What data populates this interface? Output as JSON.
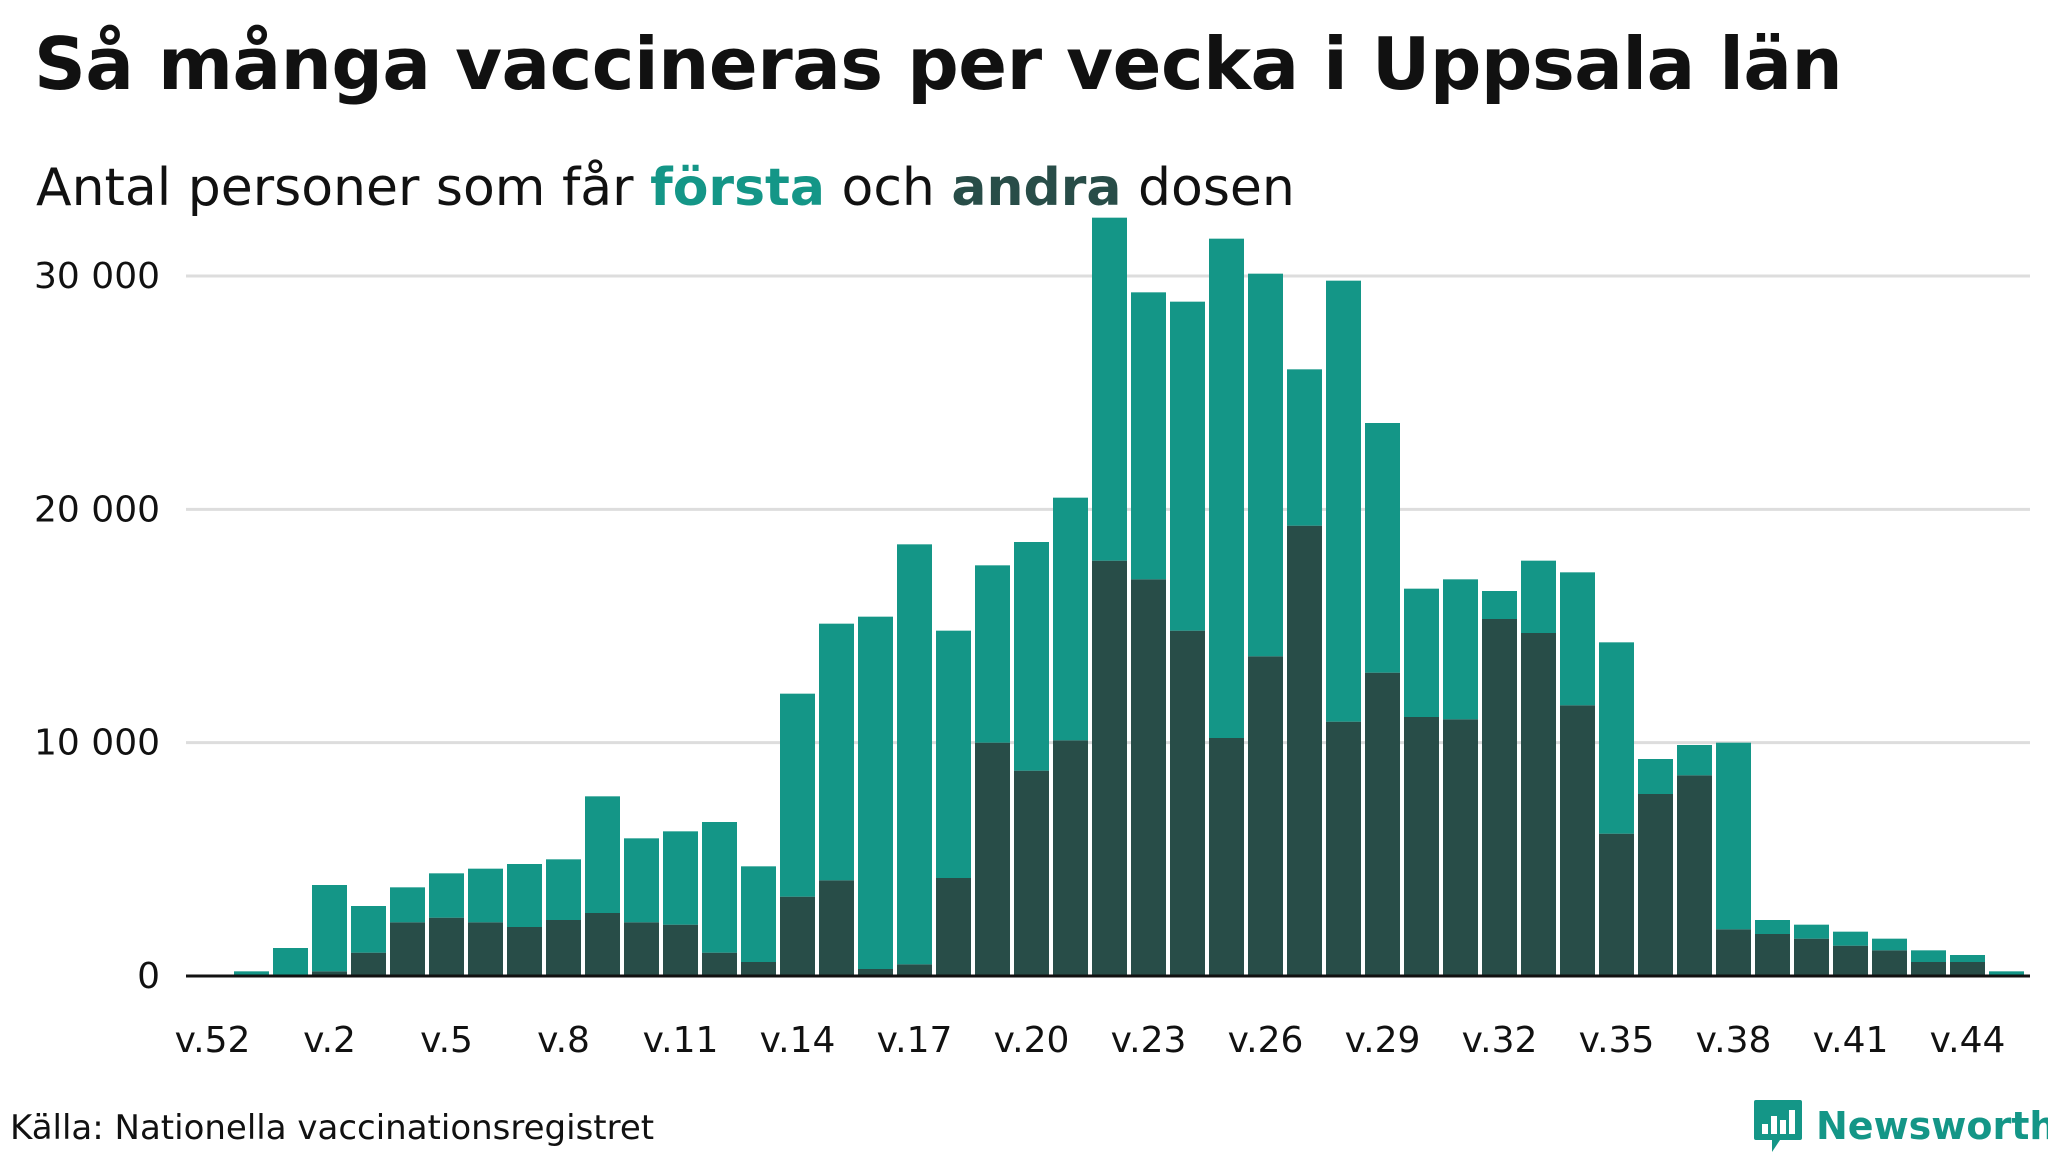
{
  "title": "Så många vaccineras per vecka i Uppsala län",
  "subtitle": {
    "prefix": "Antal personer som får ",
    "first_word": "första",
    "middle": " och ",
    "second_word": "andra",
    "suffix": " dosen"
  },
  "source": "Källa: Nationella vaccinationsregistret",
  "brand": "Newsworthy",
  "colors": {
    "first_dose": "#149687",
    "second_dose": "#284d48",
    "grid": "#dddddd",
    "axis": "#111111",
    "brand": "#149687"
  },
  "chart_data": {
    "type": "bar",
    "stacked": true,
    "ylim": [
      0,
      32500
    ],
    "yticks": [
      0,
      10000,
      20000,
      30000
    ],
    "ytick_labels": [
      "0",
      "10 000",
      "20 000",
      "30 000"
    ],
    "xtick_labels": [
      "v.52",
      "v.2",
      "v.5",
      "v.8",
      "v.11",
      "v.14",
      "v.17",
      "v.20",
      "v.23",
      "v.26",
      "v.29",
      "v.32",
      "v.35",
      "v.38",
      "v.41",
      "v.44"
    ],
    "xtick_every": 3,
    "categories": [
      "v.52",
      "v.53",
      "v.1",
      "v.2",
      "v.3",
      "v.4",
      "v.5",
      "v.6",
      "v.7",
      "v.8",
      "v.9",
      "v.10",
      "v.11",
      "v.12",
      "v.13",
      "v.14",
      "v.15",
      "v.16",
      "v.17",
      "v.18",
      "v.19",
      "v.20",
      "v.21",
      "v.22",
      "v.23",
      "v.24",
      "v.25",
      "v.26",
      "v.27",
      "v.28",
      "v.29",
      "v.30",
      "v.31",
      "v.32",
      "v.33",
      "v.34",
      "v.35",
      "v.36",
      "v.37",
      "v.38",
      "v.39",
      "v.40",
      "v.41",
      "v.42",
      "v.43",
      "v.44",
      "v.45"
    ],
    "series": [
      {
        "name": "andra",
        "values": [
          0,
          0,
          0,
          200,
          1000,
          2300,
          2500,
          2300,
          2100,
          2400,
          2700,
          2300,
          2200,
          1000,
          600,
          3400,
          4100,
          300,
          500,
          4200,
          10000,
          8800,
          10100,
          17800,
          17000,
          14800,
          10200,
          13700,
          19300,
          10900,
          13000,
          11100,
          11000,
          15300,
          14700,
          11600,
          6100,
          7800,
          8600,
          2000,
          1800,
          1600,
          1300,
          1100,
          600,
          600,
          0
        ]
      },
      {
        "name": "första",
        "values": [
          0,
          200,
          1200,
          3700,
          2000,
          1500,
          1900,
          2300,
          2700,
          2600,
          5000,
          3600,
          4000,
          5600,
          4100,
          8700,
          11000,
          15100,
          18000,
          10600,
          7600,
          9800,
          10400,
          14700,
          12300,
          14100,
          21400,
          16400,
          6700,
          18900,
          10700,
          5500,
          6000,
          1200,
          3100,
          5700,
          8200,
          1500,
          1300,
          8000,
          600,
          600,
          600,
          500,
          500,
          300,
          200
        ]
      }
    ]
  }
}
